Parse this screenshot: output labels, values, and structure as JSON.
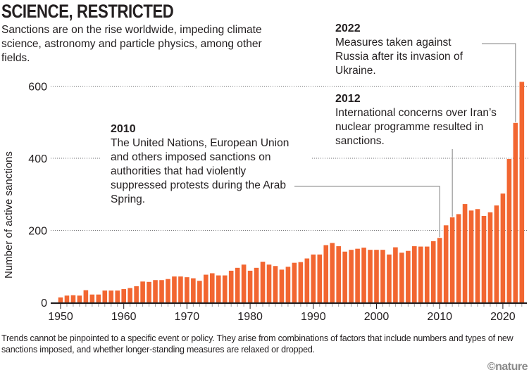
{
  "header": {
    "title": "SCIENCE, RESTRICTED",
    "subtitle": "Sanctions are on the rise worldwide, impeding climate science, astronomy and particle physics, among other fields."
  },
  "annotations": [
    {
      "year": "2022",
      "text": "Measures taken against Russia after its invasion of Ukraine."
    },
    {
      "year": "2012",
      "text": "International concerns over Iran’s nuclear programme resulted in sanctions."
    },
    {
      "year": "2010",
      "text": "The United Nations, European Union and others imposed sanctions on authorities that had violently suppressed protests during the Arab Spring."
    }
  ],
  "footnote": "Trends cannot be pinpointed to a specific event or policy. They arise from combinations of factors that include numbers and types of new sanctions imposed, and whether longer-standing measures are relaxed or dropped.",
  "brand": "©nature",
  "colors": {
    "bar": "#f26631",
    "text": "#231f20",
    "grid": "#6d6e70",
    "leader": "#808080"
  },
  "chart_data": {
    "type": "bar",
    "title": "SCIENCE, RESTRICTED",
    "xlabel": "",
    "ylabel": "Number of active sanctions",
    "ylim": [
      0,
      620
    ],
    "yticks": [
      0,
      200,
      400,
      600
    ],
    "xticks": [
      1950,
      1960,
      1970,
      1980,
      1990,
      2000,
      2010,
      2020
    ],
    "grid": "horizontal dotted",
    "x": [
      1950,
      1951,
      1952,
      1953,
      1954,
      1955,
      1956,
      1957,
      1958,
      1959,
      1960,
      1961,
      1962,
      1963,
      1964,
      1965,
      1966,
      1967,
      1968,
      1969,
      1970,
      1971,
      1972,
      1973,
      1974,
      1975,
      1976,
      1977,
      1978,
      1979,
      1980,
      1981,
      1982,
      1983,
      1984,
      1985,
      1986,
      1987,
      1988,
      1989,
      1990,
      1991,
      1992,
      1993,
      1994,
      1995,
      1996,
      1997,
      1998,
      1999,
      2000,
      2001,
      2002,
      2003,
      2004,
      2005,
      2006,
      2007,
      2008,
      2009,
      2010,
      2011,
      2012,
      2013,
      2014,
      2015,
      2016,
      2017,
      2018,
      2019,
      2020,
      2021,
      2022,
      2023
    ],
    "values": [
      14,
      19,
      20,
      19,
      34,
      22,
      22,
      33,
      33,
      33,
      37,
      40,
      45,
      58,
      57,
      62,
      62,
      65,
      72,
      72,
      70,
      67,
      60,
      77,
      81,
      75,
      75,
      88,
      96,
      105,
      88,
      96,
      113,
      105,
      101,
      91,
      99,
      110,
      112,
      122,
      133,
      133,
      159,
      165,
      156,
      141,
      146,
      149,
      152,
      146,
      146,
      146,
      133,
      153,
      138,
      143,
      156,
      155,
      155,
      170,
      179,
      214,
      236,
      245,
      273,
      255,
      259,
      240,
      250,
      269,
      302,
      398,
      498,
      612
    ],
    "annotated_years": [
      2010,
      2012,
      2022
    ]
  }
}
